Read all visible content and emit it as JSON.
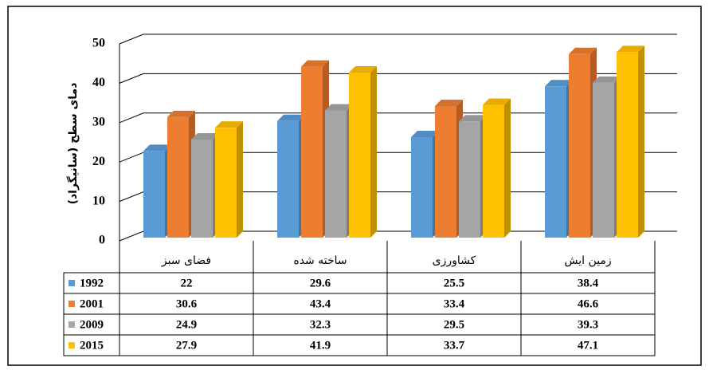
{
  "chart_data": {
    "type": "bar",
    "y_label": "دمای سطح (سانیگراد)",
    "categories": [
      "فضای سبز",
      "ساخته شده",
      "کشاورزی",
      "زمین ایش"
    ],
    "series": [
      {
        "name": "1992",
        "color": "#5b9bd5",
        "values": [
          22,
          29.6,
          25.5,
          38.4
        ]
      },
      {
        "name": "2001",
        "color": "#ed7d31",
        "values": [
          30.6,
          43.4,
          33.4,
          46.6
        ]
      },
      {
        "name": "2009",
        "color": "#a5a5a5",
        "values": [
          24.9,
          32.3,
          29.5,
          39.3
        ]
      },
      {
        "name": "2015",
        "color": "#ffc000",
        "values": [
          27.9,
          41.9,
          33.7,
          47.1
        ]
      }
    ],
    "ylim": [
      0,
      50
    ],
    "yticks": [
      0,
      10,
      20,
      30,
      40,
      50
    ],
    "grid": true
  }
}
